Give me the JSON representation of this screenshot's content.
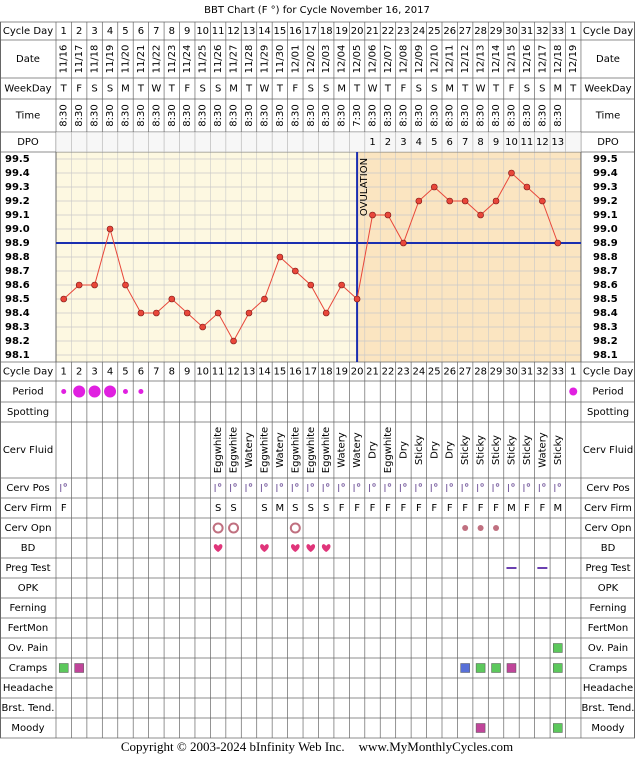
{
  "title": "BBT Chart (F °) for Cycle November 16, 2017",
  "row_labels": [
    "Cycle Day",
    "Date",
    "WeekDay",
    "Time",
    "DPO",
    "Cycle Day",
    "Period",
    "Spotting",
    "Cerv Fluid",
    "Cerv Pos",
    "Cerv Firm",
    "Cerv Opn",
    "BD",
    "Preg Test",
    "OPK",
    "Ferning",
    "FertMon",
    "Ov. Pain",
    "Cramps",
    "Headache",
    "Brst. Tend.",
    "Moody"
  ],
  "cycle_days": [
    1,
    2,
    3,
    4,
    5,
    6,
    7,
    8,
    9,
    10,
    11,
    12,
    13,
    14,
    15,
    16,
    17,
    18,
    19,
    20,
    21,
    22,
    23,
    24,
    25,
    26,
    27,
    28,
    29,
    30,
    31,
    32,
    33,
    1
  ],
  "weekdays": [
    "T",
    "F",
    "S",
    "S",
    "M",
    "T",
    "W",
    "T",
    "F",
    "S",
    "S",
    "M",
    "T",
    "W",
    "T",
    "F",
    "S",
    "S",
    "M",
    "T",
    "W",
    "T",
    "F",
    "S",
    "S",
    "M",
    "T",
    "W",
    "T",
    "F",
    "S",
    "S",
    "M",
    "T"
  ],
  "times": [
    "8:30",
    "8:30",
    "8:30",
    "8:30",
    "8:30",
    "8:30",
    "8:30",
    "8:30",
    "8:30",
    "8:30",
    "8:30",
    "8:30",
    "8:30",
    "8:30",
    "8:30",
    "8:30",
    "8:30",
    "8:30",
    "8:30",
    "7:30",
    "8:30",
    "8:30",
    "8:30",
    "8:30",
    "8:30",
    "8:30",
    "8:30",
    "8:30",
    "8:30",
    "8:30",
    "8:30",
    "8:30",
    "8:30",
    null
  ],
  "dpo": [
    null,
    null,
    null,
    null,
    null,
    null,
    null,
    null,
    null,
    null,
    null,
    null,
    null,
    null,
    null,
    null,
    null,
    null,
    null,
    null,
    1,
    2,
    3,
    4,
    5,
    6,
    7,
    8,
    9,
    10,
    11,
    12,
    13,
    null
  ],
  "chart_data": {
    "type": "line",
    "categories": [
      "11/16",
      "11/17",
      "11/18",
      "11/19",
      "11/20",
      "11/21",
      "11/22",
      "11/23",
      "11/24",
      "11/25",
      "11/26",
      "11/27",
      "11/28",
      "11/29",
      "11/30",
      "12/01",
      "12/02",
      "12/03",
      "12/04",
      "12/05",
      "12/06",
      "12/07",
      "12/08",
      "12/09",
      "12/10",
      "12/11",
      "12/12",
      "12/13",
      "12/14",
      "12/15",
      "12/16",
      "12/17",
      "12/18",
      "12/19"
    ],
    "values": [
      98.5,
      98.6,
      98.6,
      99.0,
      98.6,
      98.4,
      98.4,
      98.5,
      98.4,
      98.3,
      98.4,
      98.2,
      98.4,
      98.5,
      98.8,
      98.7,
      98.6,
      98.4,
      98.6,
      98.5,
      99.1,
      99.1,
      98.9,
      99.2,
      99.3,
      99.2,
      99.2,
      99.1,
      99.2,
      99.4,
      99.3,
      99.2,
      98.9,
      null
    ],
    "color": "#e8473a",
    "ylim": [
      98.05,
      99.55
    ],
    "yticks": [
      99.5,
      99.4,
      99.3,
      99.2,
      99.1,
      {
        "value": 99,
        "label": "99.0"
      },
      98.9,
      98.8,
      98.7,
      98.6,
      98.5,
      98.4,
      98.3,
      98.2,
      98.1
    ],
    "grid": true,
    "coverline": 98.9,
    "coverline_color": "#1a2fb0",
    "ovulation_day": 20,
    "ovulation_label": "OVULATION"
  },
  "period": [
    "light",
    "heavy",
    "heavy",
    "heavy",
    "light",
    "light",
    null,
    null,
    null,
    null,
    null,
    null,
    null,
    null,
    null,
    null,
    null,
    null,
    null,
    null,
    null,
    null,
    null,
    null,
    null,
    null,
    null,
    null,
    null,
    null,
    null,
    null,
    null,
    "medium"
  ],
  "cerv_fluid": [
    null,
    null,
    null,
    null,
    null,
    null,
    null,
    null,
    null,
    null,
    "Eggwhite",
    "Eggwhite",
    "Watery",
    "Eggwhite",
    "Watery",
    "Eggwhite",
    "Eggwhite",
    "Eggwhite",
    "Watery",
    "Watery",
    "Dry",
    "Eggwhite",
    "Dry",
    "Sticky",
    "Dry",
    "Dry",
    "Sticky",
    "Sticky",
    "Sticky",
    "Sticky",
    "Sticky",
    "Watery",
    "Sticky",
    null
  ],
  "cerv_pos": [
    true,
    null,
    null,
    null,
    null,
    null,
    null,
    null,
    null,
    null,
    true,
    true,
    true,
    true,
    true,
    true,
    true,
    true,
    true,
    true,
    true,
    true,
    true,
    true,
    true,
    true,
    true,
    true,
    true,
    true,
    true,
    true,
    true,
    null
  ],
  "cerv_firm": [
    "F",
    null,
    null,
    null,
    null,
    null,
    null,
    null,
    null,
    null,
    "S",
    "S",
    null,
    "S",
    "M",
    "S",
    "S",
    "S",
    "F",
    "F",
    "F",
    "F",
    "F",
    "F",
    "F",
    "F",
    "F",
    "F",
    "F",
    "M",
    "F",
    "F",
    "M",
    null
  ],
  "cerv_opn": [
    null,
    null,
    null,
    null,
    null,
    null,
    null,
    null,
    null,
    null,
    "open",
    "open",
    null,
    null,
    null,
    "open",
    null,
    null,
    null,
    null,
    null,
    null,
    null,
    null,
    null,
    null,
    "closed",
    "closed",
    "closed",
    null,
    null,
    null,
    null,
    null
  ],
  "bd": [
    null,
    null,
    null,
    null,
    null,
    null,
    null,
    null,
    null,
    null,
    true,
    null,
    null,
    true,
    null,
    true,
    true,
    true,
    null,
    null,
    null,
    null,
    null,
    null,
    null,
    null,
    null,
    null,
    null,
    null,
    null,
    null,
    null,
    null
  ],
  "preg_test": [
    null,
    null,
    null,
    null,
    null,
    null,
    null,
    null,
    null,
    null,
    null,
    null,
    null,
    null,
    null,
    null,
    null,
    null,
    null,
    null,
    null,
    null,
    null,
    null,
    null,
    null,
    null,
    null,
    null,
    true,
    null,
    true,
    null,
    null
  ],
  "ov_pain": [
    null,
    null,
    null,
    null,
    null,
    null,
    null,
    null,
    null,
    null,
    null,
    null,
    null,
    null,
    null,
    null,
    null,
    null,
    null,
    null,
    null,
    null,
    null,
    null,
    null,
    null,
    null,
    null,
    null,
    null,
    null,
    null,
    "#5cc85c",
    null
  ],
  "cramps": [
    "#5cc85c",
    "#c0459a",
    null,
    null,
    null,
    null,
    null,
    null,
    null,
    null,
    null,
    null,
    null,
    null,
    null,
    null,
    null,
    null,
    null,
    null,
    null,
    null,
    null,
    null,
    null,
    null,
    "#5870d8",
    "#5cc85c",
    "#5cc85c",
    "#c0459a",
    null,
    null,
    "#5cc85c",
    null
  ],
  "moody": [
    null,
    null,
    null,
    null,
    null,
    null,
    null,
    null,
    null,
    null,
    null,
    null,
    null,
    null,
    null,
    null,
    null,
    null,
    null,
    null,
    null,
    null,
    null,
    null,
    null,
    null,
    null,
    "#c0459a",
    null,
    null,
    null,
    null,
    "#5cc85c",
    null
  ],
  "footer": {
    "copyright": "Copyright © 2003-2024 bInfinity Web Inc.",
    "site": "www.MyMonthlyCycles.com"
  }
}
